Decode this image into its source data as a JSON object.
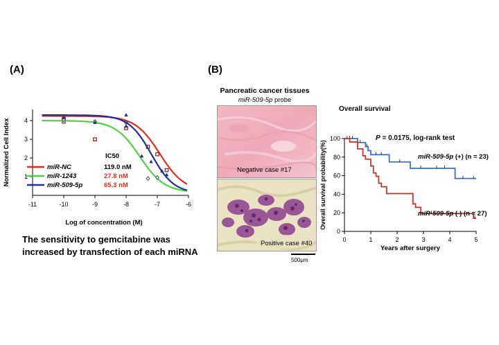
{
  "panel_a_label": "(A)",
  "panel_b_label": "(B)",
  "caption_a": [
    "The sensitivity to gemcitabine was",
    "increased by transfection of each miRNA"
  ],
  "histology": {
    "title": "Pancreatic cancer tissues",
    "probe_name": "miR-509-5p",
    "probe_suffix": " probe",
    "negative_label": "Negative case #17",
    "positive_label": "Positive case #40",
    "scale_bar": "500μm"
  },
  "colors": {
    "nc": "#e8281e",
    "m1243": "#4fd23c",
    "m509": "#1c2f9c",
    "km_pos": "#3d6fc4",
    "km_neg": "#c0392b"
  },
  "chart_data": [
    {
      "type": "line",
      "title": "",
      "xlabel": "Log of concentration (M)",
      "ylabel": "Normalized Cell Index",
      "xlim": [
        -11,
        -6
      ],
      "ylim": [
        0,
        4.6
      ],
      "xticks": [
        -11,
        -10,
        -9,
        -8,
        -7,
        -6
      ],
      "yticks": [
        1,
        2,
        3,
        4
      ],
      "legend_title": "IC50",
      "series": [
        {
          "name": "miR-NC",
          "key": "nc",
          "ic50": "119.0 nM",
          "ic50_color": "#000000",
          "top": 4.25,
          "bottom": 0.2,
          "logic50": -6.92,
          "hill": 1.1,
          "points": [
            [
              -10,
              4.1
            ],
            [
              -10,
              3.95
            ],
            [
              -9,
              3.0
            ],
            [
              -8,
              3.6
            ],
            [
              -7.3,
              2.6
            ],
            [
              -7,
              2.2
            ],
            [
              -6.7,
              1.35
            ]
          ],
          "marker": "square"
        },
        {
          "name": "miR-1243",
          "key": "m1243",
          "ic50": "27.8 nM",
          "ic50_color": "#e8281e",
          "top": 4.0,
          "bottom": 0.15,
          "logic50": -7.56,
          "hill": 1.1,
          "points": [
            [
              -10,
              4.05
            ],
            [
              -9,
              3.95
            ],
            [
              -8,
              3.9
            ],
            [
              -7.3,
              0.9
            ],
            [
              -7,
              0.95
            ]
          ],
          "marker": "diamond"
        },
        {
          "name": "miR-509-5p",
          "key": "m509",
          "ic50": "65.3 nM",
          "ic50_color": "#e8281e",
          "top": 4.3,
          "bottom": 0.1,
          "logic50": -7.19,
          "hill": 1.2,
          "points": [
            [
              -10,
              4.15
            ],
            [
              -9,
              3.9
            ],
            [
              -8,
              4.3
            ],
            [
              -8,
              3.7
            ],
            [
              -7.5,
              2.1
            ],
            [
              -7.2,
              1.8
            ],
            [
              -6.85,
              1.3
            ],
            [
              -6.7,
              1.1
            ]
          ],
          "marker": "triangle"
        }
      ]
    },
    {
      "type": "line",
      "title": "Overall survival",
      "xlabel": "Years after surgery",
      "ylabel": "Overall survival probability(%)",
      "xlim": [
        0,
        5
      ],
      "ylim": [
        0,
        100
      ],
      "xticks": [
        0,
        1,
        2,
        3,
        4,
        5
      ],
      "yticks": [
        0,
        20,
        40,
        60,
        80,
        100
      ],
      "annotation_p": "P",
      "annotation_rest": " = 0.0175, log-rank test",
      "series": [
        {
          "name": "miR-509-5p",
          "suffix": " (+) (n = 23)",
          "key": "km_pos",
          "steps": [
            [
              0,
              100
            ],
            [
              0.5,
              95.7
            ],
            [
              0.8,
              91.3
            ],
            [
              0.9,
              87.0
            ],
            [
              1.0,
              82.6
            ],
            [
              1.7,
              74.8
            ],
            [
              2.5,
              67.9
            ],
            [
              4.2,
              57.0
            ],
            [
              5,
              57.0
            ]
          ],
          "censors": [
            [
              0.1,
              100
            ],
            [
              0.2,
              100
            ],
            [
              0.3,
              100
            ],
            [
              0.6,
              95.7
            ],
            [
              0.85,
              91.3
            ],
            [
              1.2,
              82.6
            ],
            [
              1.4,
              82.6
            ],
            [
              2.1,
              74.8
            ],
            [
              2.9,
              67.9
            ],
            [
              3.5,
              67.9
            ],
            [
              3.8,
              67.9
            ],
            [
              4.5,
              57.0
            ],
            [
              4.9,
              57.0
            ]
          ]
        },
        {
          "name": "miR-509-5p",
          "suffix": " (-) (n = 27)",
          "key": "km_neg",
          "steps": [
            [
              0,
              100
            ],
            [
              0.2,
              96.3
            ],
            [
              0.5,
              88.9
            ],
            [
              0.7,
              81.5
            ],
            [
              0.8,
              77.8
            ],
            [
              1.0,
              70.4
            ],
            [
              1.1,
              63.0
            ],
            [
              1.2,
              59.3
            ],
            [
              1.3,
              51.9
            ],
            [
              1.4,
              48.1
            ],
            [
              1.6,
              40.7
            ],
            [
              2.1,
              40.7
            ],
            [
              2.6,
              29.6
            ],
            [
              2.7,
              25.9
            ],
            [
              2.9,
              19.2
            ],
            [
              4.9,
              14.0
            ],
            [
              5,
              14.0
            ]
          ],
          "censors": [
            [
              3.3,
              19.2
            ],
            [
              4.95,
              14.0
            ]
          ]
        }
      ]
    }
  ]
}
